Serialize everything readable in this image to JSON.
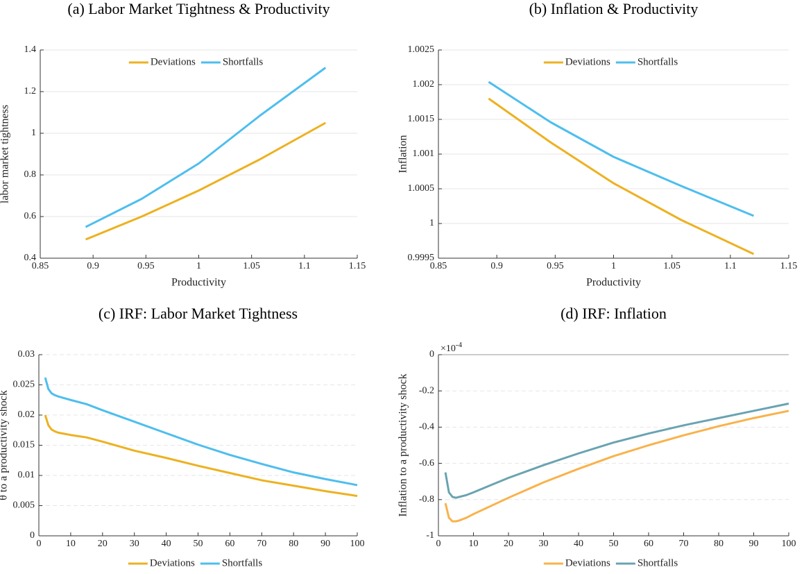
{
  "chart_data": [
    {
      "type": "line",
      "title": "(a) Labor Market Tightness & Productivity",
      "xlabel": "Productivity",
      "ylabel": "labor market tightness",
      "x": [
        0.893,
        0.946,
        1.0,
        1.058,
        1.12
      ],
      "series": [
        {
          "name": "Deviations",
          "color": "#edb120",
          "values": [
            0.49,
            0.6,
            0.725,
            0.875,
            1.05
          ]
        },
        {
          "name": "Shortfalls",
          "color": "#4dbeee",
          "values": [
            0.55,
            0.685,
            0.855,
            1.085,
            1.315
          ]
        }
      ],
      "xlim": [
        0.85,
        1.15
      ],
      "xticks": [
        0.85,
        0.9,
        0.95,
        1,
        1.05,
        1.1,
        1.15
      ],
      "ylim": [
        0.4,
        1.4
      ],
      "yticks": [
        0.4,
        0.6,
        0.8,
        1,
        1.2,
        1.4
      ],
      "grid": true,
      "legend": "top"
    },
    {
      "type": "line",
      "title": "(b) Inflation & Productivity",
      "xlabel": "Productivity",
      "ylabel": "Inflation",
      "x": [
        0.893,
        0.946,
        1.0,
        1.058,
        1.12
      ],
      "series": [
        {
          "name": "Deviations",
          "color": "#edb120",
          "values": [
            1.0018,
            1.00117,
            1.00058,
            1.00005,
            0.99956
          ]
        },
        {
          "name": "Shortfalls",
          "color": "#4dbeee",
          "values": [
            1.00204,
            1.00146,
            1.00096,
            1.00054,
            1.00011
          ]
        }
      ],
      "xlim": [
        0.85,
        1.15
      ],
      "xticks": [
        0.85,
        0.9,
        0.95,
        1,
        1.05,
        1.1,
        1.15
      ],
      "ylim": [
        0.9995,
        1.0025
      ],
      "yticks": [
        0.9995,
        1,
        1.0005,
        1.001,
        1.0015,
        1.002,
        1.0025
      ],
      "grid": true,
      "legend": "top"
    },
    {
      "type": "line",
      "title": "(c) IRF: Labor Market Tightness",
      "ylabel": "θ to a productivity shock",
      "x": [
        2,
        3,
        4,
        5,
        6,
        8,
        10,
        15,
        20,
        30,
        40,
        50,
        60,
        70,
        80,
        90,
        100
      ],
      "series": [
        {
          "name": "Deviations",
          "color": "#edb120",
          "values": [
            0.02,
            0.0183,
            0.0176,
            0.0173,
            0.0171,
            0.0169,
            0.0167,
            0.0163,
            0.0156,
            0.0141,
            0.0129,
            0.0116,
            0.0104,
            0.0092,
            0.0083,
            0.0074,
            0.0066
          ]
        },
        {
          "name": "Shortfalls",
          "color": "#4dbeee",
          "values": [
            0.0262,
            0.0243,
            0.0236,
            0.0233,
            0.0231,
            0.0228,
            0.0225,
            0.0218,
            0.0208,
            0.0189,
            0.017,
            0.0151,
            0.0134,
            0.0119,
            0.0105,
            0.0094,
            0.0084
          ]
        }
      ],
      "xlim": [
        0,
        100
      ],
      "xticks": [
        0,
        10,
        20,
        30,
        40,
        50,
        60,
        70,
        80,
        90,
        100
      ],
      "ylim": [
        0,
        0.03
      ],
      "yticks": [
        0,
        0.005,
        0.01,
        0.015,
        0.02,
        0.025,
        0.03
      ],
      "grid": true,
      "legend": "below"
    },
    {
      "type": "line",
      "title": "(d) IRF: Inflation",
      "ylabel": "Inflation to a productivity shock",
      "y_scale_base": "×10",
      "y_scale_exponent": "-4",
      "x": [
        2,
        3,
        4,
        5,
        6,
        8,
        10,
        15,
        20,
        30,
        40,
        50,
        60,
        70,
        80,
        90,
        100
      ],
      "series": [
        {
          "name": "Deviations",
          "color": "#f9b24a",
          "values": [
            -0.82,
            -0.9,
            -0.92,
            -0.92,
            -0.915,
            -0.9,
            -0.88,
            -0.835,
            -0.79,
            -0.705,
            -0.63,
            -0.56,
            -0.5,
            -0.445,
            -0.395,
            -0.35,
            -0.31
          ]
        },
        {
          "name": "Shortfalls",
          "color": "#6aa3b1",
          "values": [
            -0.65,
            -0.76,
            -0.785,
            -0.79,
            -0.785,
            -0.775,
            -0.76,
            -0.72,
            -0.68,
            -0.61,
            -0.545,
            -0.485,
            -0.435,
            -0.39,
            -0.35,
            -0.31,
            -0.27
          ]
        }
      ],
      "xlim": [
        0,
        100
      ],
      "xticks": [
        0,
        10,
        20,
        30,
        40,
        50,
        60,
        70,
        80,
        90,
        100
      ],
      "ylim": [
        -1,
        0
      ],
      "yticks": [
        -1,
        -0.8,
        -0.6,
        -0.4,
        -0.2,
        0
      ],
      "grid": true,
      "legend": "below"
    }
  ]
}
